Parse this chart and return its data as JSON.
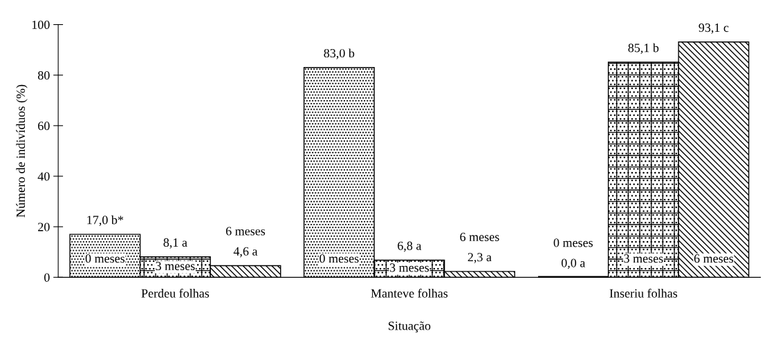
{
  "chart_data": {
    "type": "bar",
    "xlabel": "Situação",
    "ylabel": "Número de indivíduos (%)",
    "categories": [
      "Perdeu folhas",
      "Manteve folhas",
      "Inseriu folhas"
    ],
    "ylim": [
      0,
      100
    ],
    "yticks": [
      0,
      20,
      40,
      60,
      80,
      100
    ],
    "grid": false,
    "legend": false,
    "series": [
      {
        "name": "0 meses",
        "color": "#000000",
        "values": [
          17.0,
          83.0,
          0.0
        ],
        "value_labels": [
          "17,0 b*",
          "83,0 b",
          "0,0 a"
        ]
      },
      {
        "name": "3 meses",
        "color": "#000000",
        "values": [
          8.1,
          6.8,
          85.1
        ],
        "value_labels": [
          "8,1 a",
          "6,8 a",
          "85,1 b"
        ]
      },
      {
        "name": "6 meses",
        "color": "#000000",
        "values": [
          4.6,
          2.3,
          93.1
        ],
        "value_labels": [
          "4,6 a",
          "2,3 a",
          "93,1 c"
        ]
      }
    ]
  }
}
